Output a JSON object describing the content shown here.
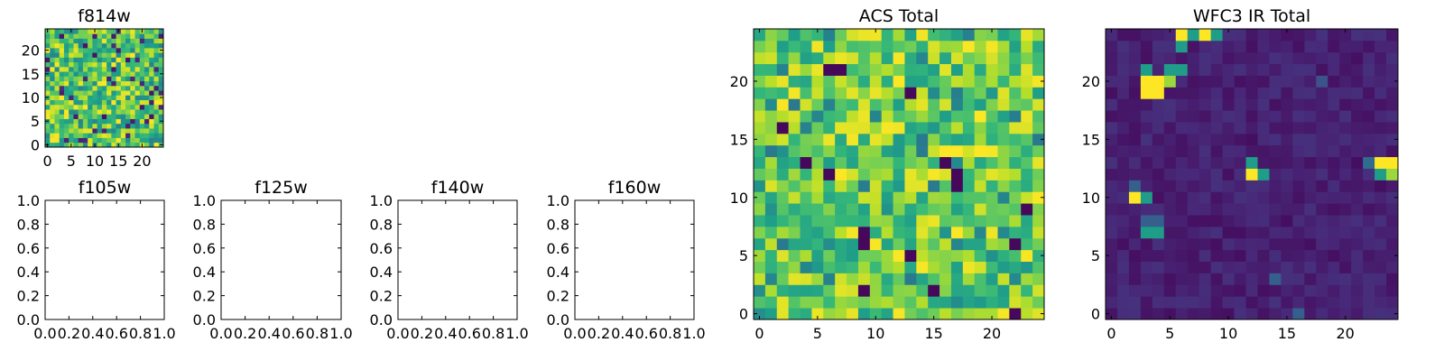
{
  "chart_data": [
    {
      "type": "heatmap",
      "title": "f814w",
      "grid_size": 25,
      "colormap": "viridis",
      "xticks": [
        0,
        5,
        10,
        15,
        20
      ],
      "yticks": [
        0,
        5,
        10,
        15,
        20
      ],
      "xlim": [
        -0.5,
        24.5
      ],
      "ylim": [
        -0.5,
        24.5
      ],
      "value_range": [
        0,
        1
      ]
    },
    {
      "type": "heatmap",
      "title": "f105w",
      "empty": true,
      "xticks": [
        "0.0",
        "0.2",
        "0.4",
        "0.6",
        "0.8",
        "1.0"
      ],
      "yticks": [
        "0.0",
        "0.2",
        "0.4",
        "0.6",
        "0.8",
        "1.0"
      ],
      "xlim": [
        0,
        1
      ],
      "ylim": [
        0,
        1
      ]
    },
    {
      "type": "heatmap",
      "title": "f125w",
      "empty": true,
      "xticks": [
        "0.0",
        "0.2",
        "0.4",
        "0.6",
        "0.8",
        "1.0"
      ],
      "yticks": [
        "0.0",
        "0.2",
        "0.4",
        "0.6",
        "0.8",
        "1.0"
      ],
      "xlim": [
        0,
        1
      ],
      "ylim": [
        0,
        1
      ]
    },
    {
      "type": "heatmap",
      "title": "f140w",
      "empty": true,
      "xticks": [
        "0.0",
        "0.2",
        "0.4",
        "0.6",
        "0.8",
        "1.0"
      ],
      "yticks": [
        "0.0",
        "0.2",
        "0.4",
        "0.6",
        "0.8",
        "1.0"
      ],
      "xlim": [
        0,
        1
      ],
      "ylim": [
        0,
        1
      ]
    },
    {
      "type": "heatmap",
      "title": "f160w",
      "empty": true,
      "xticks": [
        "0.0",
        "0.2",
        "0.4",
        "0.6",
        "0.8",
        "1.0"
      ],
      "yticks": [
        "0.0",
        "0.2",
        "0.4",
        "0.6",
        "0.8",
        "1.0"
      ],
      "xlim": [
        0,
        1
      ],
      "ylim": [
        0,
        1
      ]
    },
    {
      "type": "heatmap",
      "title": "ACS Total",
      "grid_size": 25,
      "colormap": "viridis",
      "xticks": [
        0,
        5,
        10,
        15,
        20
      ],
      "yticks": [
        0,
        5,
        10,
        15,
        20
      ],
      "xlim": [
        -0.5,
        24.5
      ],
      "ylim": [
        -0.5,
        24.5
      ],
      "value_range": [
        0,
        1
      ]
    },
    {
      "type": "heatmap",
      "title": "WFC3 IR Total",
      "grid_size": 25,
      "colormap": "viridis",
      "xticks": [
        0,
        5,
        10,
        15,
        20
      ],
      "yticks": [
        0,
        5,
        10,
        15,
        20
      ],
      "xlim": [
        -0.5,
        24.5
      ],
      "ylim": [
        -0.5,
        24.5
      ],
      "value_range": [
        0,
        1
      ],
      "bright_pixels": [
        {
          "x": 3,
          "y": 19,
          "value": 1.0
        },
        {
          "x": 4,
          "y": 19,
          "value": 1.0
        },
        {
          "x": 3,
          "y": 20,
          "value": 1.0
        },
        {
          "x": 4,
          "y": 20,
          "value": 1.0
        },
        {
          "x": 5,
          "y": 20,
          "value": 0.85
        },
        {
          "x": 3,
          "y": 21,
          "value": 0.55
        },
        {
          "x": 5,
          "y": 21,
          "value": 0.55
        },
        {
          "x": 6,
          "y": 21,
          "value": 0.55
        },
        {
          "x": 2,
          "y": 10,
          "value": 1.0
        },
        {
          "x": 3,
          "y": 10,
          "value": 0.55
        },
        {
          "x": 2,
          "y": 11,
          "value": 0.3
        },
        {
          "x": 3,
          "y": 7,
          "value": 0.55
        },
        {
          "x": 4,
          "y": 7,
          "value": 0.55
        },
        {
          "x": 3,
          "y": 8,
          "value": 0.3
        },
        {
          "x": 4,
          "y": 8,
          "value": 0.3
        },
        {
          "x": 12,
          "y": 12,
          "value": 1.0
        },
        {
          "x": 12,
          "y": 13,
          "value": 0.55
        },
        {
          "x": 13,
          "y": 12,
          "value": 0.55
        },
        {
          "x": 23,
          "y": 13,
          "value": 1.0
        },
        {
          "x": 24,
          "y": 13,
          "value": 1.0
        },
        {
          "x": 23,
          "y": 12,
          "value": 0.55
        },
        {
          "x": 24,
          "y": 12,
          "value": 0.85
        },
        {
          "x": 22,
          "y": 13,
          "value": 0.35
        },
        {
          "x": 6,
          "y": 24,
          "value": 1.0
        },
        {
          "x": 7,
          "y": 24,
          "value": 0.55
        },
        {
          "x": 8,
          "y": 24,
          "value": 1.0
        },
        {
          "x": 9,
          "y": 24,
          "value": 0.55
        },
        {
          "x": 6,
          "y": 23,
          "value": 0.55
        },
        {
          "x": 14,
          "y": 3,
          "value": 0.3
        },
        {
          "x": 18,
          "y": 20,
          "value": 0.25
        },
        {
          "x": 16,
          "y": 0,
          "value": 0.3
        }
      ]
    }
  ]
}
